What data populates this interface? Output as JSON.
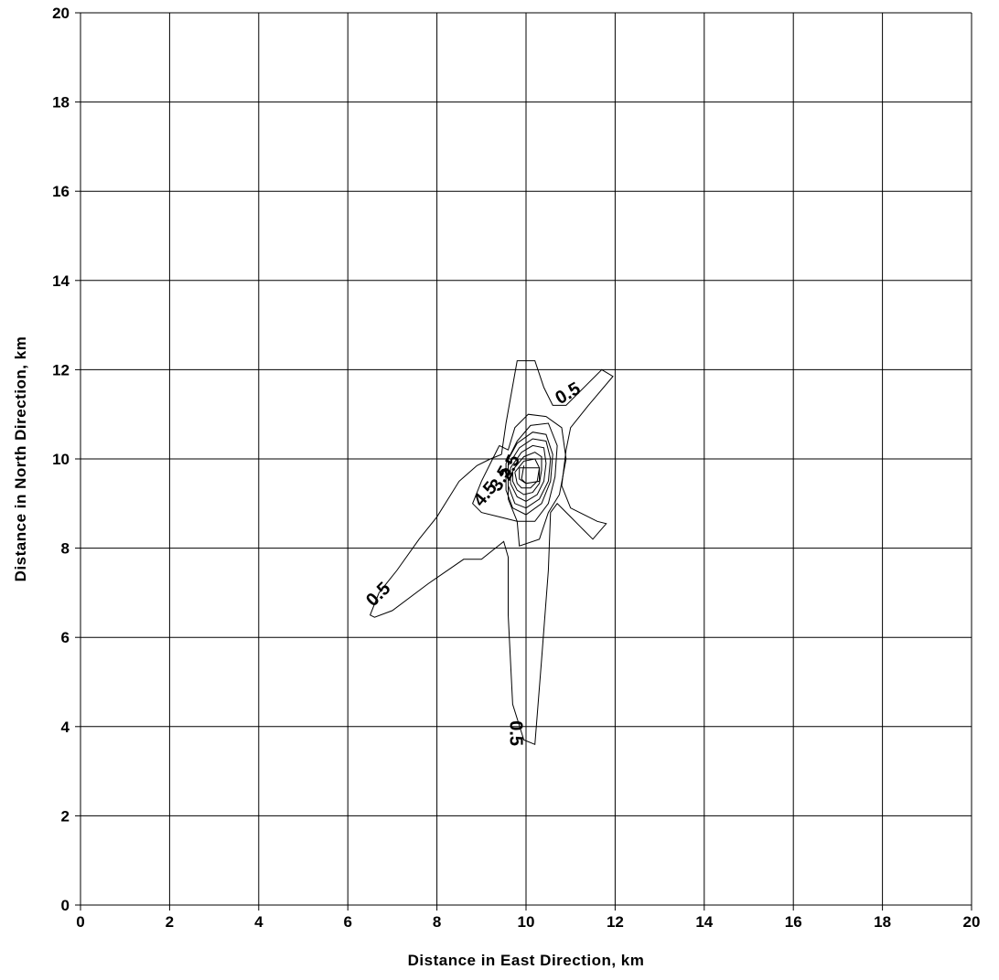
{
  "chart_data": {
    "type": "contour",
    "xlabel": "Distance in East Direction, km",
    "ylabel": "Distance in North Direction, km",
    "xlim": [
      0,
      20
    ],
    "ylim": [
      0,
      20
    ],
    "xticks": [
      "0",
      "2",
      "4",
      "6",
      "8",
      "10",
      "12",
      "14",
      "16",
      "18",
      "20"
    ],
    "yticks": [
      "0",
      "2",
      "4",
      "6",
      "8",
      "10",
      "12",
      "14",
      "16",
      "18",
      "20"
    ],
    "grid": true,
    "contour_levels": [
      0.5,
      1.5,
      2.5,
      3.5,
      4.5
    ],
    "contours": [
      {
        "level": 0.5,
        "points": [
          [
            9.45,
            10.1
          ],
          [
            9.55,
            10.8
          ],
          [
            9.8,
            12.2
          ],
          [
            10.2,
            12.2
          ],
          [
            10.4,
            11.6
          ],
          [
            10.6,
            11.2
          ],
          [
            10.9,
            11.2
          ],
          [
            11.7,
            12.0
          ],
          [
            11.95,
            11.85
          ],
          [
            11.4,
            11.2
          ],
          [
            11.0,
            10.7
          ],
          [
            10.9,
            10.2
          ],
          [
            10.8,
            9.4
          ],
          [
            11.0,
            8.9
          ],
          [
            11.6,
            8.6
          ],
          [
            11.8,
            8.55
          ],
          [
            11.5,
            8.2
          ],
          [
            11.3,
            8.4
          ],
          [
            11.0,
            8.7
          ],
          [
            10.7,
            9.0
          ],
          [
            10.55,
            8.8
          ],
          [
            10.5,
            7.5
          ],
          [
            10.35,
            5.5
          ],
          [
            10.2,
            3.6
          ],
          [
            9.95,
            3.7
          ],
          [
            9.7,
            4.5
          ],
          [
            9.6,
            6.5
          ],
          [
            9.6,
            7.8
          ],
          [
            9.5,
            8.15
          ],
          [
            9.0,
            7.75
          ],
          [
            8.6,
            7.75
          ],
          [
            7.8,
            7.2
          ],
          [
            7.0,
            6.6
          ],
          [
            6.6,
            6.45
          ],
          [
            6.5,
            6.5
          ],
          [
            6.7,
            7.0
          ],
          [
            7.1,
            7.5
          ],
          [
            7.6,
            8.2
          ],
          [
            8.0,
            8.7
          ],
          [
            8.5,
            9.5
          ],
          [
            8.9,
            9.85
          ],
          [
            9.2,
            10.0
          ],
          [
            9.45,
            10.1
          ]
        ],
        "labels": [
          {
            "text": "0.5",
            "x": 10.95,
            "y": 11.45,
            "angle": -30
          },
          {
            "text": "0.5",
            "x": 6.7,
            "y": 6.95,
            "angle": -45
          },
          {
            "text": "0.5",
            "x": 9.75,
            "y": 3.85,
            "angle": 90
          }
        ]
      },
      {
        "level": 1.0,
        "points": [
          [
            9.4,
            10.3
          ],
          [
            9.6,
            10.2
          ],
          [
            9.75,
            10.7
          ],
          [
            10.05,
            11.0
          ],
          [
            10.45,
            10.95
          ],
          [
            10.8,
            10.7
          ],
          [
            10.9,
            10.0
          ],
          [
            10.75,
            9.2
          ],
          [
            10.5,
            8.8
          ],
          [
            10.3,
            8.2
          ],
          [
            9.85,
            8.05
          ],
          [
            9.8,
            8.6
          ],
          [
            9.4,
            8.7
          ],
          [
            9.0,
            8.8
          ],
          [
            8.8,
            9.0
          ],
          [
            9.0,
            9.5
          ],
          [
            9.4,
            10.3
          ]
        ]
      },
      {
        "level": 1.5,
        "points": [
          [
            9.6,
            9.1
          ],
          [
            9.6,
            10.0
          ],
          [
            9.8,
            10.4
          ],
          [
            10.1,
            10.75
          ],
          [
            10.5,
            10.8
          ],
          [
            10.7,
            10.3
          ],
          [
            10.65,
            9.6
          ],
          [
            10.5,
            9.0
          ],
          [
            10.2,
            8.6
          ],
          [
            9.8,
            8.6
          ],
          [
            9.6,
            9.1
          ]
        ]
      },
      {
        "level": 2.0,
        "points": [
          [
            9.55,
            9.9
          ],
          [
            9.8,
            10.35
          ],
          [
            10.15,
            10.6
          ],
          [
            10.45,
            10.55
          ],
          [
            10.6,
            10.1
          ],
          [
            10.55,
            9.5
          ],
          [
            10.35,
            9.0
          ],
          [
            10.0,
            8.75
          ],
          [
            9.7,
            8.9
          ],
          [
            9.55,
            9.3
          ],
          [
            9.55,
            9.9
          ]
        ]
      },
      {
        "level": 2.5,
        "points": [
          [
            9.6,
            9.85
          ],
          [
            9.85,
            10.25
          ],
          [
            10.15,
            10.45
          ],
          [
            10.45,
            10.4
          ],
          [
            10.55,
            10.0
          ],
          [
            10.5,
            9.5
          ],
          [
            10.3,
            9.1
          ],
          [
            10.0,
            8.9
          ],
          [
            9.75,
            9.0
          ],
          [
            9.6,
            9.4
          ],
          [
            9.6,
            9.85
          ]
        ]
      },
      {
        "level": 3.0,
        "points": [
          [
            9.65,
            9.8
          ],
          [
            9.9,
            10.15
          ],
          [
            10.15,
            10.3
          ],
          [
            10.4,
            10.25
          ],
          [
            10.45,
            9.9
          ],
          [
            10.4,
            9.5
          ],
          [
            10.25,
            9.2
          ],
          [
            10.0,
            9.05
          ],
          [
            9.8,
            9.15
          ],
          [
            9.65,
            9.45
          ],
          [
            9.65,
            9.8
          ]
        ]
      },
      {
        "level": 3.5,
        "points": [
          [
            9.7,
            9.75
          ],
          [
            9.95,
            10.05
          ],
          [
            10.2,
            10.15
          ],
          [
            10.35,
            10.05
          ],
          [
            10.35,
            9.75
          ],
          [
            10.3,
            9.45
          ],
          [
            10.15,
            9.25
          ],
          [
            9.95,
            9.2
          ],
          [
            9.8,
            9.3
          ],
          [
            9.7,
            9.5
          ],
          [
            9.7,
            9.75
          ]
        ]
      },
      {
        "level": 4.0,
        "points": [
          [
            9.75,
            9.7
          ],
          [
            9.95,
            9.95
          ],
          [
            10.2,
            10.0
          ],
          [
            10.3,
            9.8
          ],
          [
            10.25,
            9.5
          ],
          [
            10.1,
            9.35
          ],
          [
            9.9,
            9.35
          ],
          [
            9.8,
            9.45
          ],
          [
            9.75,
            9.7
          ]
        ]
      },
      {
        "level": 4.5,
        "points": [
          [
            9.85,
            9.8
          ],
          [
            10.3,
            9.8
          ],
          [
            10.3,
            9.5
          ],
          [
            10.0,
            9.45
          ],
          [
            9.85,
            9.55
          ],
          [
            9.85,
            9.8
          ]
        ],
        "labels": [
          {
            "text": "4.5",
            "x": 9.1,
            "y": 9.2,
            "angle": -50
          }
        ]
      },
      {
        "level": 5.0,
        "points": [
          [
            9.95,
            9.85
          ],
          [
            9.9,
            9.55
          ],
          [
            10.0,
            9.45
          ]
        ]
      },
      {
        "level": 3.5,
        "points": [],
        "labels": [
          {
            "text": "3.5",
            "x": 9.45,
            "y": 9.55,
            "angle": -60
          }
        ]
      },
      {
        "level": 2.5,
        "points": [],
        "labels": [
          {
            "text": "2.5",
            "x": 9.65,
            "y": 9.8,
            "angle": -65
          }
        ]
      }
    ]
  }
}
